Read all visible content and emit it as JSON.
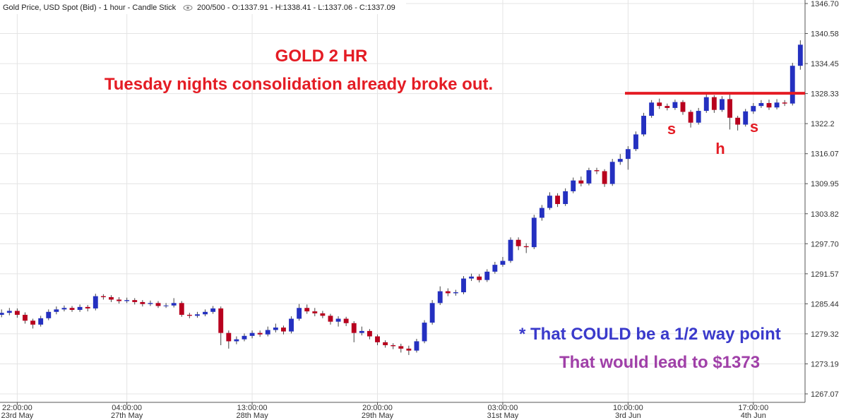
{
  "header": {
    "title": "Gold Price, USD Spot (Bid) - 1 hour - Candle Stick",
    "stats": "200/500 - O:1337.91 - H:1338.41 - L:1337.06 - C:1337.09"
  },
  "chart_data": {
    "type": "candlestick",
    "up_color": "#2430c0",
    "down_color": "#b8001e",
    "grid": true,
    "ylim": [
      1265.34,
      1347.42
    ],
    "yticks": [
      {
        "value": 1346.7,
        "label": "1346.70"
      },
      1340.58,
      1334.45,
      1328.33,
      1322.2,
      1316.07,
      1309.95,
      1303.82,
      {
        "value": 1297.7,
        "label": "1297.70"
      },
      1291.57,
      1285.44,
      1279.32,
      1273.19,
      1267.07
    ],
    "xlim": [
      -0.2,
      102.6
    ],
    "xticks": [
      {
        "value": 2,
        "label": [
          "22:00:00",
          "23rd May"
        ]
      },
      {
        "value": 16,
        "label": [
          "04:00:00",
          "27th May"
        ]
      },
      {
        "value": 32,
        "label": [
          "13:00:00",
          "28th May"
        ]
      },
      {
        "value": 48,
        "label": [
          "20:00:00",
          "29th May"
        ]
      },
      {
        "value": 64,
        "label": [
          "03:00:00",
          "31st May"
        ]
      },
      {
        "value": 80,
        "label": [
          "10:00:00",
          "3rd Jun"
        ]
      },
      {
        "value": 96,
        "label": [
          "17:00:00",
          "4th Jun"
        ]
      }
    ],
    "open": [
      1283.2,
      1283.6,
      1284.0,
      1283.2,
      1282.0,
      1281.2,
      1282.5,
      1283.8,
      1284.3,
      1284.6,
      1284.2,
      1284.8,
      1284.5,
      1287.0,
      1286.8,
      1286.3,
      1286.0,
      1286.2,
      1285.8,
      1285.4,
      1285.6,
      1285.0,
      1285.1,
      1285.6,
      1283.2,
      1283.0,
      1283.3,
      1283.8,
      1284.5,
      1279.5,
      1277.8,
      1278.2,
      1278.9,
      1279.5,
      1279.2,
      1280.1,
      1280.6,
      1279.8,
      1282.4,
      1284.6,
      1283.9,
      1283.5,
      1283.0,
      1281.8,
      1282.4,
      1281.5,
      1279.5,
      1279.9,
      1278.8,
      1277.6,
      1277.0,
      1276.8,
      1276.3,
      1275.9,
      1277.8,
      1281.6,
      1285.6,
      1288.0,
      1287.6,
      1287.8,
      1290.6,
      1291.0,
      1290.3,
      1292.0,
      1293.4,
      1294.2,
      1298.5,
      1297.2,
      1297.0,
      1303.0,
      1305.0,
      1307.5,
      1305.8,
      1308.4,
      1310.6,
      1310.0,
      1312.7,
      1312.5,
      1309.9,
      1314.4,
      1315.0,
      1317.0,
      1320.0,
      1323.8,
      1326.5,
      1325.8,
      1325.4,
      1326.6,
      1324.6,
      1322.4,
      1324.8,
      1327.6,
      1325.0,
      1327.2,
      1323.4,
      1322.0,
      1324.7,
      1325.8,
      1326.4,
      1325.5,
      1326.5,
      1326.3,
      1334.0
    ],
    "high": [
      1284.3,
      1284.6,
      1284.5,
      1283.7,
      1282.4,
      1283.0,
      1284.3,
      1284.9,
      1285.1,
      1285.0,
      1285.3,
      1285.2,
      1287.5,
      1287.4,
      1287.2,
      1286.8,
      1286.7,
      1286.6,
      1286.2,
      1286.1,
      1286.0,
      1285.6,
      1286.6,
      1286.0,
      1283.6,
      1283.8,
      1284.3,
      1285.0,
      1284.9,
      1280.0,
      1278.8,
      1279.4,
      1280.0,
      1280.0,
      1280.8,
      1281.4,
      1281.0,
      1282.9,
      1285.4,
      1285.3,
      1284.6,
      1284.0,
      1283.4,
      1282.9,
      1282.8,
      1281.9,
      1280.8,
      1280.3,
      1279.2,
      1278.0,
      1277.4,
      1277.3,
      1276.9,
      1278.3,
      1282.1,
      1286.2,
      1289.0,
      1288.6,
      1288.3,
      1291.1,
      1291.6,
      1291.5,
      1292.5,
      1294.0,
      1295.0,
      1299.0,
      1299.0,
      1297.8,
      1303.6,
      1305.6,
      1308.2,
      1308.0,
      1309.0,
      1311.2,
      1311.4,
      1313.2,
      1313.2,
      1312.9,
      1315.0,
      1316.0,
      1317.6,
      1320.6,
      1324.4,
      1327.0,
      1327.3,
      1326.3,
      1327.1,
      1327.0,
      1325.0,
      1325.4,
      1328.6,
      1328.0,
      1327.8,
      1328.6,
      1323.8,
      1325.2,
      1326.4,
      1327.0,
      1327.1,
      1327.2,
      1327.0,
      1334.6,
      1339.2
    ],
    "low": [
      1282.7,
      1283.1,
      1282.6,
      1281.4,
      1280.4,
      1280.8,
      1282.1,
      1283.3,
      1283.9,
      1283.8,
      1283.8,
      1283.9,
      1284.1,
      1286.3,
      1285.8,
      1285.5,
      1285.6,
      1285.3,
      1284.9,
      1285.0,
      1284.6,
      1284.6,
      1284.7,
      1282.8,
      1282.5,
      1282.6,
      1282.9,
      1283.4,
      1277.0,
      1276.3,
      1277.2,
      1277.8,
      1278.4,
      1278.7,
      1278.8,
      1279.6,
      1279.2,
      1279.4,
      1282.0,
      1283.4,
      1282.9,
      1282.5,
      1281.2,
      1280.8,
      1280.9,
      1277.6,
      1279.0,
      1278.2,
      1277.0,
      1276.5,
      1276.2,
      1275.5,
      1275.0,
      1275.5,
      1277.4,
      1281.2,
      1285.2,
      1287.0,
      1287.1,
      1287.4,
      1290.1,
      1289.8,
      1289.9,
      1291.6,
      1293.0,
      1293.8,
      1296.4,
      1295.8,
      1296.6,
      1302.4,
      1304.6,
      1305.2,
      1305.4,
      1308.0,
      1309.4,
      1309.6,
      1311.9,
      1309.3,
      1309.5,
      1313.8,
      1312.8,
      1316.6,
      1319.6,
      1323.4,
      1325.2,
      1324.9,
      1325.0,
      1324.0,
      1321.4,
      1322.0,
      1324.4,
      1324.4,
      1324.6,
      1321.0,
      1320.8,
      1321.6,
      1324.2,
      1325.4,
      1325.0,
      1325.1,
      1325.8,
      1325.9,
      1333.2
    ],
    "close": [
      1283.6,
      1284.0,
      1283.2,
      1282.0,
      1281.2,
      1282.5,
      1283.8,
      1284.3,
      1284.6,
      1284.2,
      1284.8,
      1284.5,
      1287.0,
      1286.8,
      1286.3,
      1286.0,
      1286.2,
      1285.8,
      1285.4,
      1285.6,
      1285.0,
      1285.1,
      1285.6,
      1283.2,
      1283.0,
      1283.3,
      1283.8,
      1284.5,
      1279.5,
      1277.8,
      1278.2,
      1278.9,
      1279.5,
      1279.2,
      1280.1,
      1280.6,
      1279.8,
      1282.4,
      1284.6,
      1283.9,
      1283.5,
      1283.0,
      1281.8,
      1282.4,
      1281.5,
      1279.5,
      1279.9,
      1278.8,
      1277.6,
      1277.0,
      1276.8,
      1276.3,
      1275.9,
      1277.8,
      1281.6,
      1285.6,
      1288.0,
      1287.6,
      1287.8,
      1290.6,
      1291.0,
      1290.3,
      1292.0,
      1293.4,
      1294.2,
      1298.5,
      1297.2,
      1297.0,
      1303.0,
      1305.0,
      1307.5,
      1305.8,
      1308.4,
      1310.6,
      1310.0,
      1312.7,
      1312.5,
      1309.9,
      1314.4,
      1315.0,
      1317.0,
      1320.0,
      1323.8,
      1326.5,
      1325.8,
      1325.4,
      1326.6,
      1324.6,
      1322.4,
      1324.8,
      1327.6,
      1325.0,
      1327.2,
      1323.4,
      1322.0,
      1324.7,
      1325.8,
      1326.4,
      1325.5,
      1326.5,
      1326.3,
      1334.0,
      1338.3
    ],
    "hline": {
      "value": 1328.4,
      "color": "#e41c24"
    },
    "annotations": {
      "headline": "GOLD 2 HR",
      "subhead": "Tuesday nights consolidation already broke out.",
      "left_shoulder": "s",
      "head": "h",
      "right_shoulder": "s",
      "note1": "* That COULD be a 1/2 way point",
      "note2": "That would lead to $1373"
    }
  }
}
